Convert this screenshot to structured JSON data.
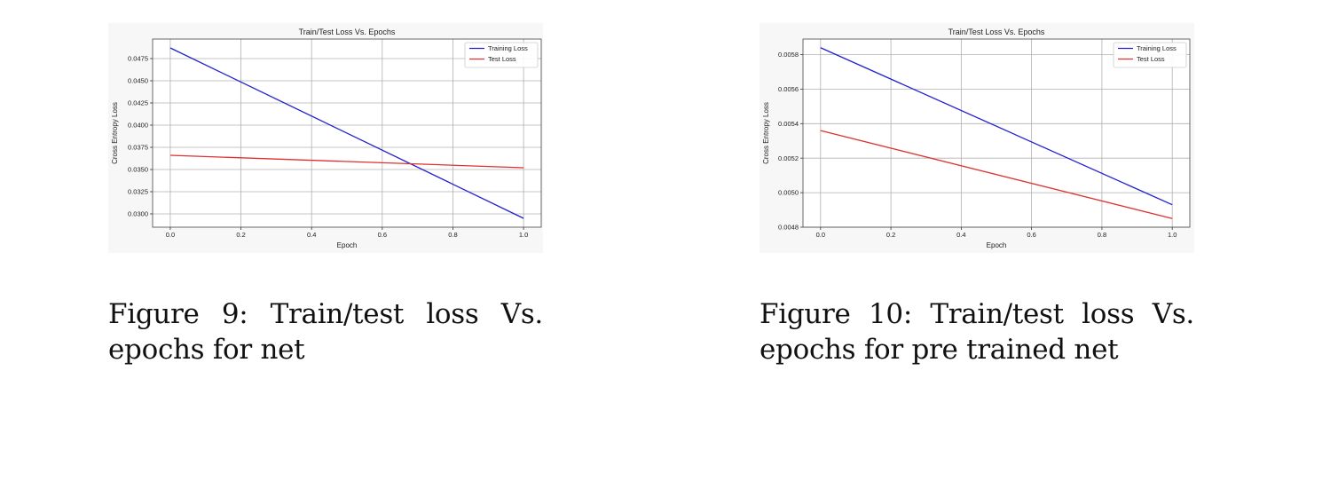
{
  "figures": [
    {
      "caption": "Figure 9: Train/test loss Vs. epochs for net",
      "chart_data": {
        "type": "line",
        "title": "Train/Test Loss Vs. Epochs",
        "xlabel": "Epoch",
        "ylabel": "Cross Entropy Loss",
        "xlim": [
          -0.05,
          1.05
        ],
        "ylim": [
          0.0285,
          0.0497
        ],
        "xticks": [
          "0.0",
          "0.2",
          "0.4",
          "0.6",
          "0.8",
          "1.0"
        ],
        "yticks": [
          "0.0300",
          "0.0325",
          "0.0350",
          "0.0375",
          "0.0400",
          "0.0425",
          "0.0450",
          "0.0475"
        ],
        "grid": true,
        "legend": "top-right",
        "series": [
          {
            "name": "Training Loss",
            "color": "#2020d0",
            "x": [
              0.0,
              1.0
            ],
            "y": [
              0.0487,
              0.0295
            ]
          },
          {
            "name": "Test Loss",
            "color": "#e03030",
            "x": [
              0.0,
              1.0
            ],
            "y": [
              0.0366,
              0.0352
            ]
          }
        ]
      }
    },
    {
      "caption": "Figure 10: Train/test loss Vs. epochs for pre trained net",
      "chart_data": {
        "type": "line",
        "title": "Train/Test Loss Vs. Epochs",
        "xlabel": "Epoch",
        "ylabel": "Cross Entropy Loss",
        "xlim": [
          -0.05,
          1.05
        ],
        "ylim": [
          0.0048,
          0.00589
        ],
        "xticks": [
          "0.0",
          "0.2",
          "0.4",
          "0.6",
          "0.8",
          "1.0"
        ],
        "yticks": [
          "0.0048",
          "0.0050",
          "0.0052",
          "0.0054",
          "0.0056",
          "0.0058"
        ],
        "grid": true,
        "legend": "top-right",
        "series": [
          {
            "name": "Training Loss",
            "color": "#2020d0",
            "x": [
              0.0,
              1.0
            ],
            "y": [
              0.00584,
              0.00493
            ]
          },
          {
            "name": "Test Loss",
            "color": "#e03030",
            "x": [
              0.0,
              1.0
            ],
            "y": [
              0.00536,
              0.00485
            ]
          }
        ]
      }
    }
  ]
}
